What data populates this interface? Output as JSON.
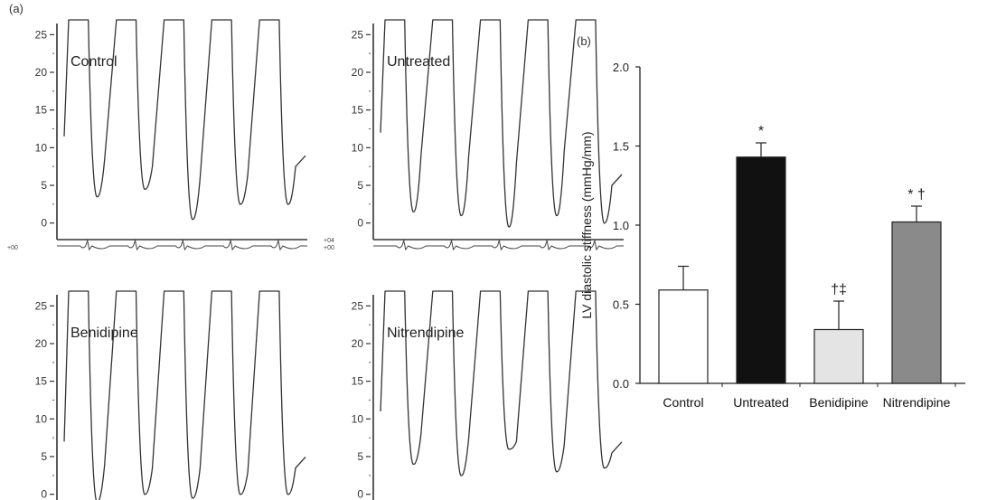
{
  "panel_a": {
    "label": "(a)",
    "ecg_tick_labels": {
      "lower": "+00",
      "upper": "+04"
    },
    "traces": [
      {
        "title": "Control",
        "y_ticks": [
          "25",
          "20",
          "15",
          "10",
          "5",
          "0"
        ]
      },
      {
        "title": "Untreated",
        "y_ticks": [
          "25",
          "20",
          "15",
          "10",
          "5",
          "0"
        ]
      },
      {
        "title": "Benidipine",
        "y_ticks": [
          "25",
          "20",
          "15",
          "10",
          "5",
          "0"
        ]
      },
      {
        "title": "Nitrendipine",
        "y_ticks": [
          "25",
          "20",
          "15",
          "10",
          "5",
          "0"
        ]
      }
    ]
  },
  "panel_b": {
    "label": "(b)"
  },
  "chart_data": [
    {
      "type": "line",
      "title": "Control",
      "ylim": [
        -1,
        26
      ],
      "y_ticks": [
        0,
        5,
        10,
        15,
        20,
        25
      ],
      "beats": [
        {
          "min": 3.5,
          "end_diastolic": 8.5
        },
        {
          "min": 4.5,
          "end_diastolic": 7.5
        },
        {
          "min": 0.5,
          "end_diastolic": 6.0
        },
        {
          "min": 2.5,
          "end_diastolic": 6.5
        },
        {
          "min": 2.5,
          "end_diastolic": 7.5
        }
      ]
    },
    {
      "type": "line",
      "title": "Untreated",
      "ylim": [
        -1,
        26
      ],
      "y_ticks": [
        0,
        5,
        10,
        15,
        20,
        25
      ],
      "beats": [
        {
          "min": 1.5,
          "end_diastolic": 9.0
        },
        {
          "min": 1.0,
          "end_diastolic": 9.0
        },
        {
          "min": -0.5,
          "end_diastolic": 8.0
        },
        {
          "min": 1.0,
          "end_diastolic": 9.5
        },
        {
          "min": 0.0,
          "end_diastolic": 5.0
        }
      ]
    },
    {
      "type": "line",
      "title": "Benidipine",
      "ylim": [
        -1,
        26
      ],
      "y_ticks": [
        0,
        5,
        10,
        15,
        20,
        25
      ],
      "beats": [
        {
          "min": -1.0,
          "end_diastolic": 4.0
        },
        {
          "min": 0.0,
          "end_diastolic": 3.5
        },
        {
          "min": -0.5,
          "end_diastolic": 3.5
        },
        {
          "min": 0.0,
          "end_diastolic": 3.0
        },
        {
          "min": 0.0,
          "end_diastolic": 3.5
        }
      ]
    },
    {
      "type": "line",
      "title": "Nitrendipine",
      "ylim": [
        -1,
        26
      ],
      "y_ticks": [
        0,
        5,
        10,
        15,
        20,
        25
      ],
      "beats": [
        {
          "min": 4.0,
          "end_diastolic": 8.0
        },
        {
          "min": 2.5,
          "end_diastolic": 7.5
        },
        {
          "min": 6.0,
          "end_diastolic": 7.0
        },
        {
          "min": 3.0,
          "end_diastolic": 6.5
        },
        {
          "min": 3.5,
          "end_diastolic": 5.5
        }
      ]
    },
    {
      "type": "bar",
      "categories": [
        "Control",
        "Untreated",
        "Benidipine",
        "Nitrendipine"
      ],
      "values": [
        0.59,
        1.43,
        0.34,
        1.02
      ],
      "errors": [
        0.15,
        0.09,
        0.18,
        0.1
      ],
      "significance": [
        "",
        "*",
        "†‡",
        "* †"
      ],
      "bar_colors": [
        "#ffffff",
        "#111111",
        "#e4e4e4",
        "#8a8a8a"
      ],
      "ylabel": "LV diastolic stiffness (mmHg/mm)",
      "ylim": [
        0,
        2.0
      ],
      "y_ticks": [
        "0.0",
        "0.5",
        "1.0",
        "1.5",
        "2.0"
      ]
    }
  ]
}
